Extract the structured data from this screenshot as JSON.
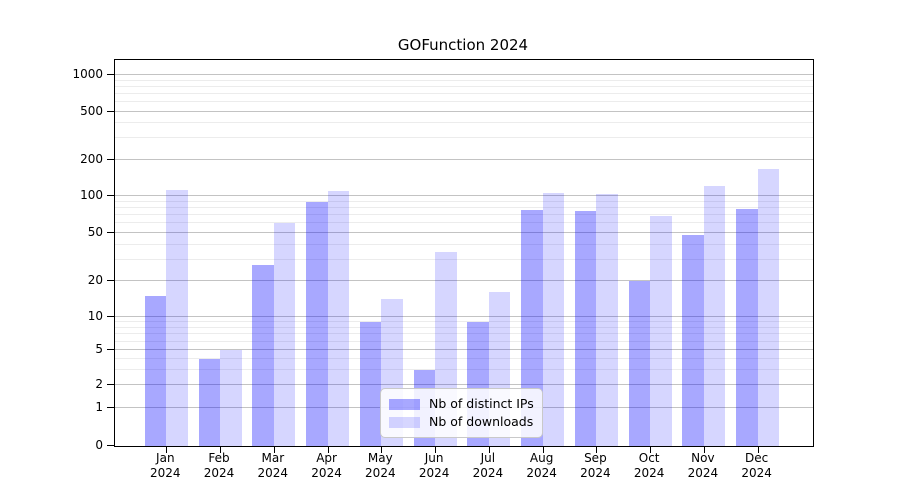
{
  "chart_data": {
    "type": "bar",
    "title": "GOFunction 2024",
    "categories": [
      "Jan 2024",
      "Feb 2024",
      "Mar 2024",
      "Apr 2024",
      "May 2024",
      "Jun 2024",
      "Jul 2024",
      "Aug 2024",
      "Sep 2024",
      "Oct 2024",
      "Nov 2024",
      "Dec 2024"
    ],
    "series": [
      {
        "name": "Nb of distinct IPs",
        "color": "rgba(0,0,255,0.34)",
        "values": [
          15,
          4,
          27,
          90,
          9,
          3,
          9,
          77,
          75,
          20,
          48,
          79
        ]
      },
      {
        "name": "Nb of downloads",
        "color": "rgba(0,0,255,0.16)",
        "values": [
          112,
          5,
          60,
          110,
          14,
          35,
          16,
          105,
          104,
          69,
          120,
          168
        ]
      }
    ],
    "xlabel": "",
    "ylabel": "",
    "yscale": "symlog",
    "y_ticks": [
      0,
      1,
      2,
      5,
      10,
      20,
      50,
      100,
      200,
      500,
      1000
    ],
    "ylim": [
      0,
      1300
    ],
    "grid": "both-major-and-minor",
    "legend_position": "lower-center-inside"
  },
  "legend": {
    "items": [
      {
        "label": "Nb of distinct IPs"
      },
      {
        "label": "Nb of downloads"
      }
    ]
  }
}
